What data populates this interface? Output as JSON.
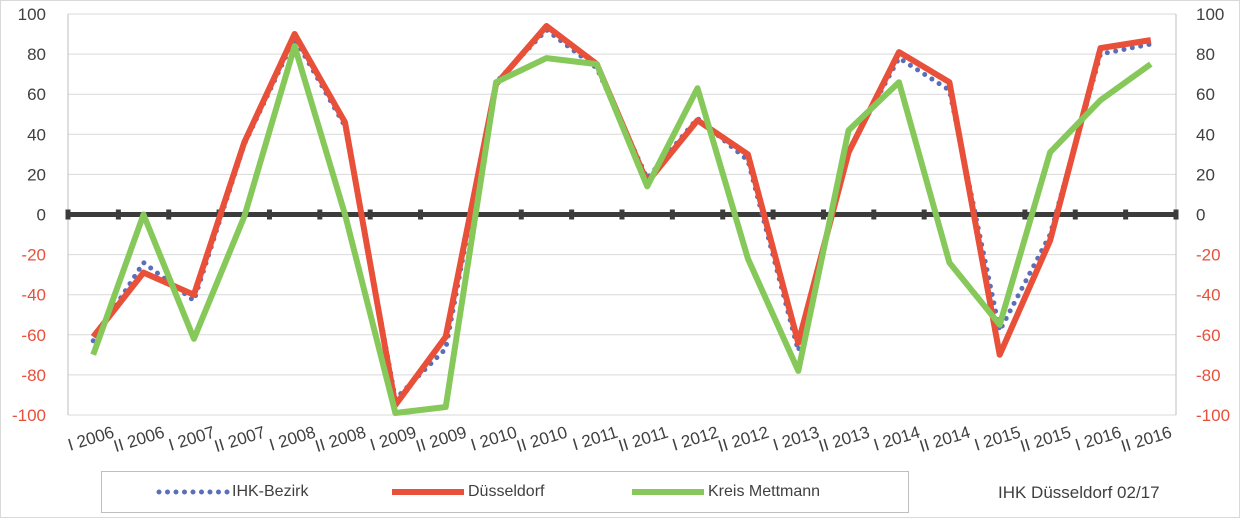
{
  "chart_data": {
    "type": "line",
    "title": "",
    "xlabel": "",
    "ylabel": "",
    "x": [
      "I 2006",
      "II 2006",
      "I 2007",
      "II 2007",
      "I 2008",
      "II 2008",
      "I 2009",
      "II 2009",
      "I 2010",
      "II 2010",
      "I 2011",
      "II 2011",
      "I 2012",
      "II 2012",
      "I 2013",
      "II 2013",
      "I 2014",
      "II 2014",
      "I 2015",
      "II 2015",
      "I 2016",
      "II 2016"
    ],
    "ylim": [
      -100,
      100
    ],
    "y_ticks": [
      100,
      80,
      60,
      40,
      20,
      0,
      -20,
      -40,
      -60,
      -80,
      -100
    ],
    "y_tick_labels": [
      "100",
      "80",
      "60",
      "40",
      "20",
      "0",
      "-20",
      "-40",
      "-60",
      "-80",
      "-100"
    ],
    "grid": "horizontal",
    "legend_position": "bottom",
    "series": [
      {
        "name": "IHK-Bezirk",
        "style": "dotted",
        "color": "#5b6fb8",
        "values": [
          -63,
          -24,
          -43,
          35,
          88,
          44,
          -92,
          -67,
          66,
          92,
          73,
          18,
          48,
          27,
          -68,
          32,
          78,
          62,
          -58,
          -10,
          80,
          85
        ]
      },
      {
        "name": "Düsseldorf",
        "style": "solid",
        "color": "#e8503a",
        "values": [
          -61,
          -29,
          -40,
          36,
          90,
          46,
          -95,
          -61,
          65,
          94,
          75,
          16,
          47,
          30,
          -64,
          31,
          81,
          66,
          -70,
          -13,
          83,
          87
        ]
      },
      {
        "name": "Kreis Mettmann",
        "style": "solid",
        "color": "#86c95a",
        "values": [
          -70,
          0,
          -62,
          -1,
          84,
          0,
          -99,
          -96,
          66,
          78,
          75,
          14,
          63,
          -22,
          -78,
          42,
          66,
          -24,
          -55,
          31,
          57,
          75
        ]
      }
    ]
  },
  "colors": {
    "left_axis_text": "#e8503a",
    "right_axis_text": "#e8503a",
    "zero_line": "#3c3c3c",
    "grid": "#d9d9d9"
  },
  "footer": {
    "source_note": "IHK Düsseldorf 02/17"
  }
}
